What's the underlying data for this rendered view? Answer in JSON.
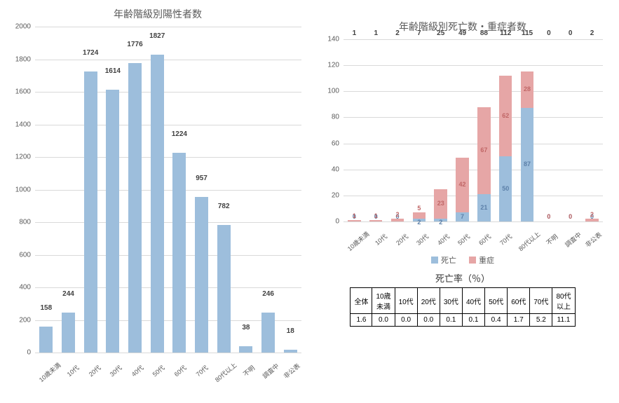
{
  "left_chart": {
    "type": "bar",
    "title": "年齢階級別陽性者数",
    "categories": [
      "10歳未満",
      "10代",
      "20代",
      "30代",
      "40代",
      "50代",
      "60代",
      "70代",
      "80代以上",
      "不明",
      "調査中",
      "非公表"
    ],
    "values": [
      158,
      244,
      1724,
      1614,
      1776,
      1827,
      1224,
      957,
      782,
      38,
      246,
      18
    ],
    "bar_color": "#9dbedc",
    "ylim": [
      0,
      2000
    ],
    "ytick_step": 200,
    "grid_color": "#d9d9d9",
    "axis_text_color": "#595959",
    "label_fontsize": 10
  },
  "right_chart": {
    "type": "stacked_bar",
    "title": "年齢階級別死亡数・重症者数",
    "categories": [
      "10歳未満",
      "10代",
      "20代",
      "30代",
      "40代",
      "50代",
      "60代",
      "70代",
      "80代以上",
      "不明",
      "調査中",
      "非公表"
    ],
    "series": [
      {
        "name": "死亡",
        "color": "#9dbedc",
        "text_color": "#5b7fa8",
        "values": [
          0,
          0,
          0,
          2,
          2,
          7,
          21,
          50,
          87,
          0,
          0,
          0
        ]
      },
      {
        "name": "重症",
        "color": "#e6a6a6",
        "text_color": "#c06666",
        "values": [
          1,
          1,
          2,
          5,
          23,
          42,
          67,
          62,
          28,
          0,
          0,
          2
        ]
      }
    ],
    "totals": [
      1,
      1,
      2,
      7,
      25,
      49,
      88,
      112,
      115,
      0,
      0,
      2
    ],
    "ylim": [
      0,
      140
    ],
    "ytick_step": 20,
    "grid_color": "#d9d9d9",
    "axis_text_color": "#595959"
  },
  "mortality_table": {
    "title": "死亡率（％）",
    "headers": [
      "全体",
      "10歳\n未満",
      "10代",
      "20代",
      "30代",
      "40代",
      "50代",
      "60代",
      "70代",
      "80代\n以上"
    ],
    "values": [
      "1.6",
      "0.0",
      "0.0",
      "0.0",
      "0.1",
      "0.1",
      "0.4",
      "1.7",
      "5.2",
      "11.1"
    ]
  }
}
